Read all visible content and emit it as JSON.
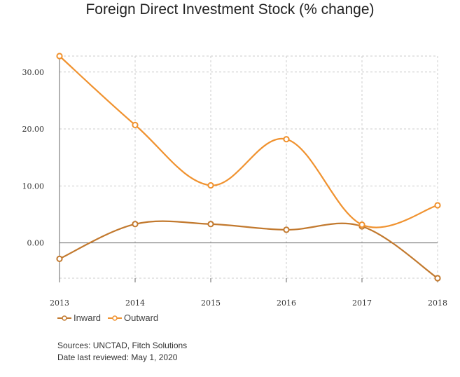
{
  "chart_data": {
    "type": "line",
    "title": "Foreign Direct Investment Stock (% change)",
    "x": [
      "2013",
      "2014",
      "2015",
      "2016",
      "2017",
      "2018"
    ],
    "series": [
      {
        "name": "Inward",
        "values": [
          -2.8,
          3.3,
          3.3,
          2.3,
          2.9,
          -6.2
        ],
        "color": "#c2792e"
      },
      {
        "name": "Outward",
        "values": [
          32.8,
          20.7,
          10.1,
          18.2,
          3.2,
          6.6
        ],
        "color": "#f0922f"
      }
    ],
    "yticks": [
      "30.00",
      "20.00",
      "10.00",
      "0.00"
    ],
    "ylim": [
      -6.2,
      32.8
    ],
    "grid": true,
    "legend_position": "bottom-left"
  },
  "footer": {
    "sources": "Sources: UNCTAD, Fitch Solutions",
    "reviewed": "Date last reviewed: May 1, 2020"
  }
}
